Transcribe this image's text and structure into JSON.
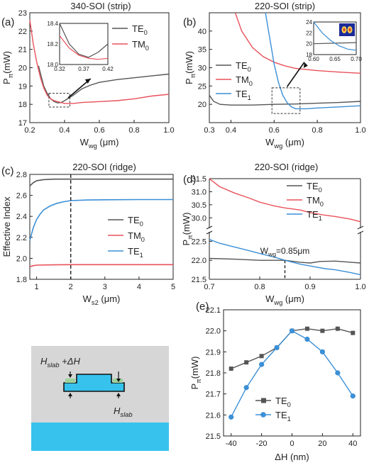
{
  "colors": {
    "te0": "#555555",
    "tm0": "#e8525b",
    "te1": "#3b8fd6",
    "axis": "#222222",
    "cladding": "#d6d6d6",
    "substrate": "#37c2ee",
    "slab": "#9fd29a"
  },
  "chart_data": [
    {
      "id": "a",
      "type": "line",
      "panel_label": "(a)",
      "title": "340-SOI (strip)",
      "ylabel_main": "P",
      "ylabel_sub": "π",
      "ylabel_unit": "(mW)",
      "xlabel_main": "W",
      "xlabel_sub": "wg",
      "xlabel_unit": " (μm)",
      "xlim": [
        0.2,
        1.0
      ],
      "ylim": [
        17,
        23
      ],
      "xticks": [
        0.2,
        0.4,
        0.6,
        0.8,
        1.0
      ],
      "xtick_labels": [
        "0.2",
        "0.4",
        "0.6",
        "0.8",
        "1.0"
      ],
      "yticks": [
        17,
        18,
        19,
        20,
        21,
        22,
        23
      ],
      "ytick_labels": [
        "17",
        "18",
        "19",
        "20",
        "21",
        "22",
        "23"
      ],
      "legend": [
        {
          "main": "TE",
          "sub": "0"
        },
        {
          "main": "TM",
          "sub": "0"
        }
      ],
      "series": [
        {
          "key": "te0",
          "color": "#555555",
          "x": [
            0.25,
            0.28,
            0.3,
            0.32,
            0.34,
            0.36,
            0.38,
            0.4,
            0.45,
            0.5,
            0.55,
            0.6,
            0.7,
            0.8,
            0.9,
            1.0
          ],
          "y": [
            20.1,
            19.0,
            18.6,
            18.3,
            18.15,
            18.08,
            18.1,
            18.2,
            18.5,
            18.85,
            19.05,
            19.2,
            19.35,
            19.45,
            19.55,
            19.65
          ]
        },
        {
          "key": "tm0",
          "color": "#e8525b",
          "x": [
            0.2,
            0.22,
            0.24,
            0.26,
            0.28,
            0.3,
            0.32,
            0.34,
            0.36,
            0.38,
            0.4,
            0.45,
            0.5,
            0.6,
            0.7,
            0.8,
            0.9,
            1.0
          ],
          "y": [
            22.6,
            21.3,
            20.3,
            19.5,
            18.9,
            18.5,
            18.3,
            18.2,
            18.15,
            18.1,
            18.05,
            18.05,
            18.1,
            18.15,
            18.2,
            18.3,
            18.45,
            18.55
          ]
        }
      ],
      "inset": {
        "xlim": [
          0.32,
          0.42
        ],
        "ylim": [
          18.0,
          18.4
        ],
        "xtick_labels": [
          "0.32",
          "0.37",
          "0.42"
        ],
        "ytick_labels": [
          "18.0",
          "18.2",
          "18.4"
        ],
        "series": [
          {
            "key": "te0",
            "x": [
              0.32,
              0.34,
              0.36,
              0.38,
              0.4,
              0.42
            ],
            "y": [
              18.4,
              18.2,
              18.1,
              18.07,
              18.12,
              18.2
            ]
          },
          {
            "key": "tm0",
            "x": [
              0.32,
              0.34,
              0.36,
              0.38,
              0.4,
              0.42
            ],
            "y": [
              18.28,
              18.16,
              18.09,
              18.06,
              18.05,
              18.06
            ]
          }
        ]
      }
    },
    {
      "id": "b",
      "type": "line",
      "panel_label": "(b)",
      "title": "220-SOI (strip)",
      "ylabel_main": "P",
      "ylabel_sub": "π",
      "ylabel_unit": "(mW)",
      "xlabel_main": "W",
      "xlabel_sub": "wg",
      "xlabel_unit": " (μm)",
      "xlim": [
        0.3,
        1.0
      ],
      "ylim": [
        15,
        45
      ],
      "xticks": [
        0.3,
        0.4,
        0.6,
        0.8,
        1.0
      ],
      "xtick_labels": [
        "0.3",
        "0.4",
        "0.6",
        "0.8",
        "1.0"
      ],
      "yticks": [
        15,
        20,
        25,
        30,
        35,
        40,
        45
      ],
      "ytick_labels": [
        "",
        "20",
        "25",
        "30",
        "35",
        "40",
        ""
      ],
      "legend": [
        {
          "main": "TE",
          "sub": "0"
        },
        {
          "main": "TM",
          "sub": "0"
        },
        {
          "main": "TE",
          "sub": "1"
        }
      ],
      "series": [
        {
          "key": "te0",
          "color": "#555555",
          "x": [
            0.3,
            0.32,
            0.35,
            0.4,
            0.5,
            0.6,
            0.7,
            0.8,
            0.9,
            1.0
          ],
          "y": [
            22.5,
            20.8,
            20.0,
            19.8,
            19.8,
            20.0,
            20.1,
            20.3,
            20.5,
            20.8
          ]
        },
        {
          "key": "tm0",
          "color": "#e8525b",
          "x": [
            0.42,
            0.45,
            0.5,
            0.55,
            0.6,
            0.65,
            0.7,
            0.8,
            0.9,
            1.0
          ],
          "y": [
            45,
            40,
            35.5,
            33,
            31.5,
            30.5,
            29.8,
            29.2,
            28.8,
            28.5
          ]
        },
        {
          "key": "te1",
          "color": "#3b8fd6",
          "x": [
            0.56,
            0.58,
            0.6,
            0.62,
            0.64,
            0.66,
            0.68,
            0.7,
            0.75,
            0.8,
            0.9,
            1.0
          ],
          "y": [
            45,
            38,
            31,
            26,
            22.5,
            20.5,
            19.3,
            18.8,
            18.8,
            19.0,
            19.3,
            19.6
          ]
        }
      ],
      "inset": {
        "xlim": [
          0.6,
          0.7
        ],
        "ylim": [
          18,
          24
        ],
        "xtick_labels": [
          "0.60",
          "0.65",
          "0.70"
        ],
        "ytick_labels": [
          "18",
          "20",
          "22",
          "24"
        ],
        "series": [
          {
            "key": "te0",
            "x": [
              0.6,
              0.65,
              0.7
            ],
            "y": [
              20.0,
              20.1,
              20.2
            ]
          },
          {
            "key": "te1",
            "x": [
              0.6,
              0.62,
              0.64,
              0.66,
              0.68,
              0.7
            ],
            "y": [
              24,
              22,
              20.6,
              19.6,
              19.0,
              18.8
            ]
          }
        ]
      }
    },
    {
      "id": "c",
      "type": "line",
      "panel_label": "(c)",
      "title": "220-SOI (ridge)",
      "ylabel_main": "Effective Index",
      "ylabel_sub": "",
      "ylabel_unit": "",
      "xlabel_main": "W",
      "xlabel_sub": "s2",
      "xlabel_unit": " (μm)",
      "xlim": [
        0.8,
        5
      ],
      "ylim": [
        1.8,
        2.8
      ],
      "xticks": [
        1,
        2,
        3,
        4,
        5
      ],
      "xtick_labels": [
        "1",
        "2",
        "3",
        "4",
        "5"
      ],
      "yticks": [
        1.8,
        2.0,
        2.2,
        2.4,
        2.6,
        2.8
      ],
      "ytick_labels": [
        "1.8",
        "2.0",
        "2.2",
        "2.4",
        "2.6",
        "2.8"
      ],
      "vline_x": 2,
      "legend": [
        {
          "main": "TE",
          "sub": "0"
        },
        {
          "main": "TM",
          "sub": "0"
        },
        {
          "main": "TE",
          "sub": "1"
        }
      ],
      "series": [
        {
          "key": "te0",
          "color": "#555555",
          "x": [
            0.8,
            0.9,
            1.0,
            1.2,
            1.5,
            2.0,
            3.0,
            5.0
          ],
          "y": [
            2.69,
            2.72,
            2.74,
            2.75,
            2.755,
            2.755,
            2.755,
            2.755
          ]
        },
        {
          "key": "tm0",
          "color": "#e8525b",
          "x": [
            0.8,
            0.9,
            1.0,
            1.5,
            2.0,
            3.0,
            5.0
          ],
          "y": [
            1.92,
            1.93,
            1.935,
            1.938,
            1.94,
            1.94,
            1.94
          ]
        },
        {
          "key": "te1",
          "color": "#3b8fd6",
          "x": [
            0.8,
            0.9,
            1.0,
            1.1,
            1.2,
            1.4,
            1.6,
            1.8,
            2.0,
            2.5,
            3.0,
            4.0,
            5.0
          ],
          "y": [
            2.17,
            2.29,
            2.37,
            2.42,
            2.46,
            2.5,
            2.525,
            2.54,
            2.55,
            2.556,
            2.558,
            2.56,
            2.56
          ]
        }
      ]
    },
    {
      "id": "d",
      "type": "line",
      "panel_label": "(d)",
      "title": "220-SOI (ridge)",
      "ylabel_main": "P",
      "ylabel_sub": "π",
      "ylabel_unit": "(mW)",
      "xlabel_main": "W",
      "xlabel_sub": "wg",
      "xlabel_unit": " (μm)",
      "xlim": [
        0.7,
        1.0
      ],
      "upper_ylim": [
        29.6,
        31.5
      ],
      "upper_yticks": [
        30.0,
        30.5,
        31.0,
        31.5
      ],
      "upper_ytick_labels": [
        "30.0",
        "30.5",
        "31.0",
        "31.5"
      ],
      "lower_ylim": [
        21.5,
        22.75
      ],
      "lower_yticks": [
        21.5,
        22.0,
        22.5
      ],
      "lower_ytick_labels": [
        "21.5",
        "22.0",
        "22.5"
      ],
      "xticks": [
        0.7,
        0.8,
        0.9,
        1.0
      ],
      "xtick_labels": [
        "0.7",
        "0.8",
        "0.9",
        "1.0"
      ],
      "vline_x": 0.85,
      "annotation": "W_wg=0.85μm",
      "legend": [
        {
          "main": "TE",
          "sub": "0"
        },
        {
          "main": "TM",
          "sub": "0"
        },
        {
          "main": "TE",
          "sub": "1"
        }
      ],
      "series": [
        {
          "key": "tm0",
          "color": "#e8525b",
          "panel": "upper",
          "x": [
            0.7,
            0.72,
            0.75,
            0.78,
            0.8,
            0.83,
            0.85,
            0.88,
            0.9,
            0.93,
            0.95,
            0.98,
            1.0
          ],
          "y": [
            31.5,
            31.2,
            30.95,
            30.75,
            30.6,
            30.45,
            30.38,
            30.3,
            30.2,
            30.1,
            30.05,
            29.95,
            29.85
          ]
        },
        {
          "key": "te0",
          "color": "#555555",
          "panel": "lower",
          "x": [
            0.7,
            0.75,
            0.8,
            0.85,
            0.88,
            0.9,
            0.92,
            0.95,
            0.98,
            1.0
          ],
          "y": [
            22.05,
            22.03,
            22.0,
            22.0,
            21.95,
            21.93,
            21.97,
            21.98,
            21.95,
            21.93
          ]
        },
        {
          "key": "te1",
          "color": "#3b8fd6",
          "panel": "lower",
          "x": [
            0.7,
            0.72,
            0.75,
            0.78,
            0.8,
            0.83,
            0.85,
            0.88,
            0.9,
            0.93,
            0.95,
            0.98,
            1.0
          ],
          "y": [
            22.55,
            22.45,
            22.35,
            22.25,
            22.18,
            22.08,
            22.0,
            21.9,
            21.85,
            21.78,
            21.75,
            21.68,
            21.62
          ]
        }
      ]
    },
    {
      "id": "e",
      "type": "line",
      "panel_label": "(e)",
      "title": "",
      "ylabel_main": "P",
      "ylabel_sub": "π",
      "ylabel_unit": "(mW)",
      "xlabel_main": "ΔH (nm)",
      "xlabel_sub": "",
      "xlabel_unit": "",
      "xlim": [
        -45,
        45
      ],
      "ylim": [
        21.5,
        22.1
      ],
      "xticks": [
        -40,
        -20,
        0,
        20,
        40
      ],
      "xtick_labels": [
        "-40",
        "-20",
        "0",
        "20",
        "40"
      ],
      "yticks": [
        21.5,
        21.6,
        21.7,
        21.8,
        21.9,
        22.0,
        22.1
      ],
      "ytick_labels": [
        "21.5",
        "21.6",
        "21.7",
        "21.8",
        "21.9",
        "22.0",
        "22.1"
      ],
      "legend": [
        {
          "main": "TE",
          "sub": "0"
        },
        {
          "main": "TE",
          "sub": "1"
        }
      ],
      "series": [
        {
          "key": "te0",
          "color": "#555555",
          "marker": "square",
          "x": [
            -40,
            -30,
            -20,
            -10,
            0,
            10,
            20,
            30,
            40
          ],
          "y": [
            21.82,
            21.85,
            21.88,
            21.92,
            22.0,
            22.01,
            22.0,
            22.01,
            21.99
          ]
        },
        {
          "key": "te1",
          "color": "#3b8fd6",
          "marker": "circle",
          "x": [
            -40,
            -30,
            -20,
            -10,
            0,
            10,
            20,
            30,
            40
          ],
          "y": [
            21.59,
            21.73,
            21.84,
            21.92,
            22.0,
            21.96,
            21.9,
            21.8,
            21.69
          ]
        }
      ]
    }
  ],
  "diagram": {
    "label_top_main": "H",
    "label_top_sub": "slab",
    "label_top_extra": " +ΔH",
    "label_bottom_main": "H",
    "label_bottom_sub": "slab"
  }
}
